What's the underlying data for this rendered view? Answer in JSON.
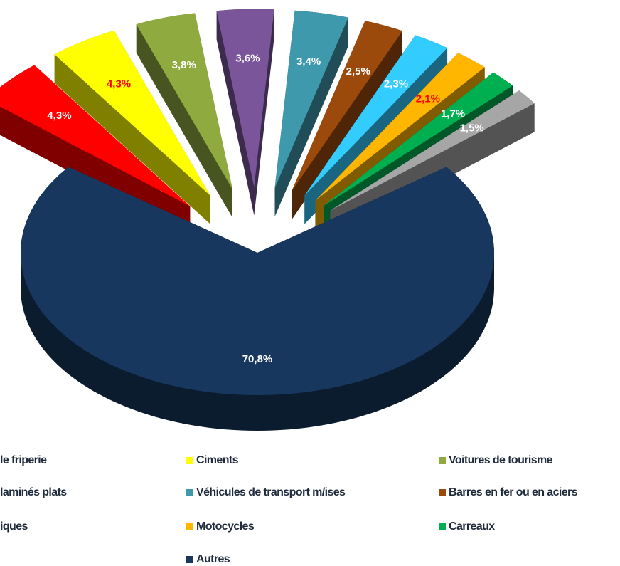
{
  "chart_data": {
    "type": "pie3d",
    "categories": [
      "le friperie",
      "Ciments",
      "Voitures de tourisme",
      "laminés  plats",
      "Véhicules de transport m/ises",
      "Barres en fer ou en aciers",
      "iques",
      "Motocycles",
      "Carreaux",
      null,
      "Autres"
    ],
    "values": [
      4.3,
      4.3,
      3.8,
      3.6,
      3.4,
      2.5,
      2.3,
      2.1,
      1.7,
      1.5,
      70.8
    ],
    "value_labels": [
      "4,3%",
      "4,3%",
      "3,8%",
      "3,6%",
      "3,4%",
      "2,5%",
      "2,3%",
      "2,1%",
      "1,7%",
      "1,5%",
      "70,8%"
    ],
    "colors": [
      "#ff0000",
      "#ffff00",
      "#8faa3f",
      "#7a559a",
      "#3f99ad",
      "#9c4a0c",
      "#33ccff",
      "#ffb600",
      "#00b050",
      "#a6a6a6",
      "#17375e"
    ],
    "value_label_colors": [
      "#ffffff",
      "#ff0000",
      "#ffffff",
      "#ffffff",
      "#ffffff",
      "#ffffff",
      "#ffffff",
      "#ff0000",
      "#ffffff",
      "#ffffff",
      "#ffffff"
    ]
  }
}
